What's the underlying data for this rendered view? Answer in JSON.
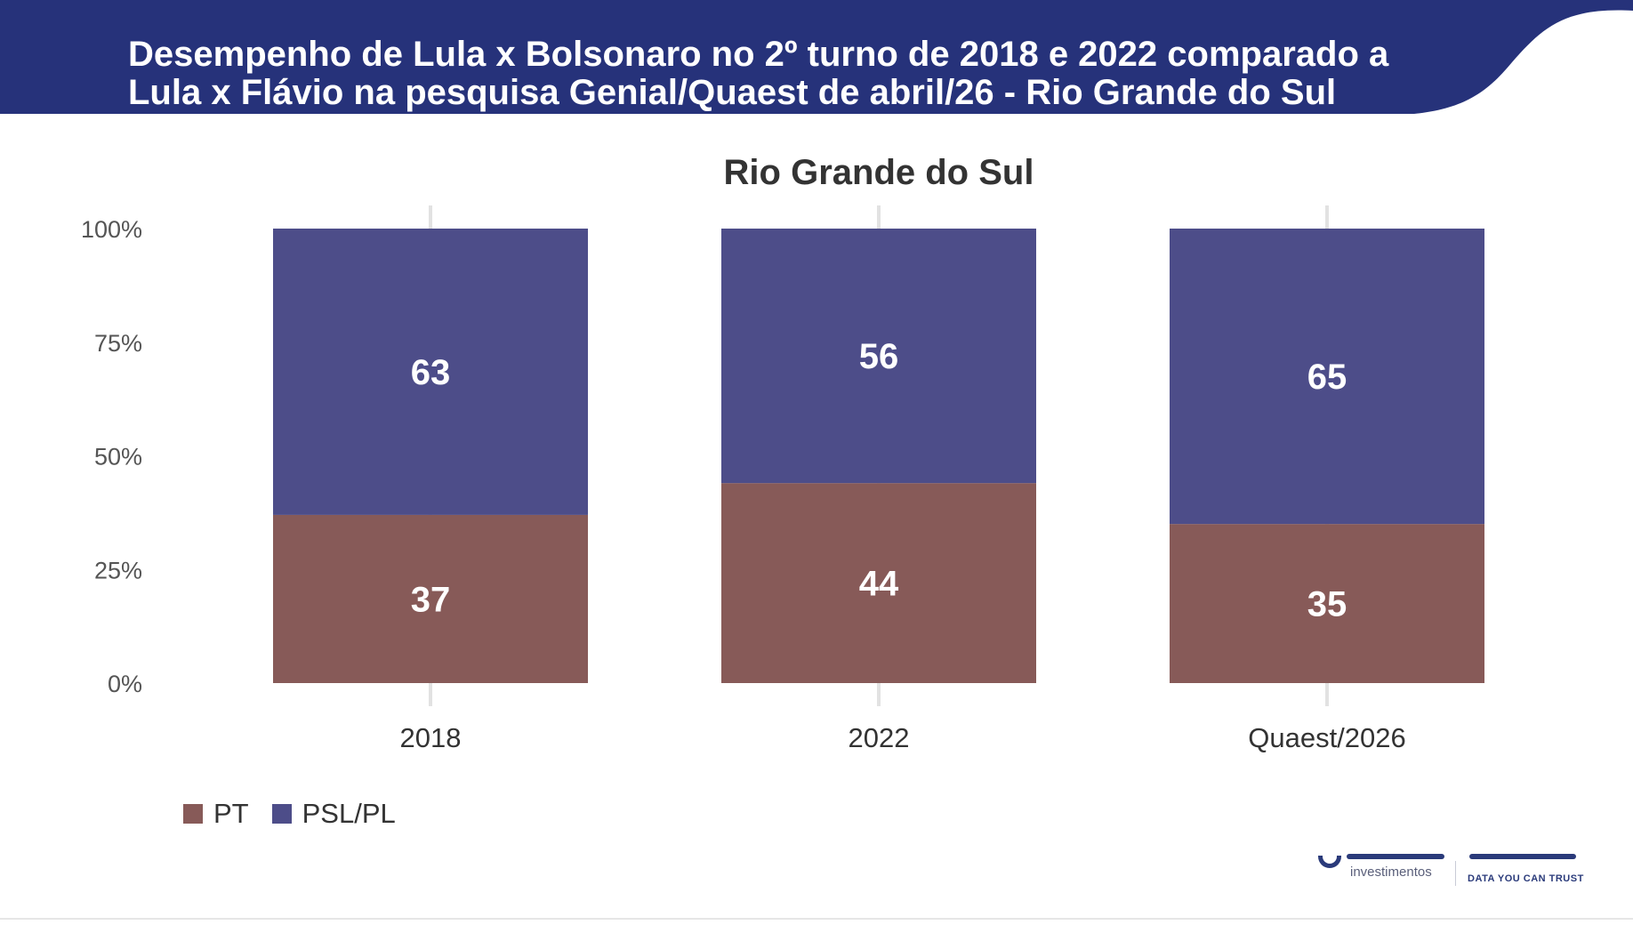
{
  "header": {
    "title_line1": "Desempenho de Lula x Bolsonaro no 2º turno de 2018 e 2022 comparado a",
    "title_line2": "Lula x Flávio na pesquisa Genial/Quaest de abril/26 - Rio Grande do Sul",
    "band_color": "#26327a"
  },
  "chart_data": {
    "type": "bar",
    "stacked": true,
    "percent_axis": true,
    "title": "Rio Grande do Sul",
    "categories": [
      "2018",
      "2022",
      "Quaest/2026"
    ],
    "series": [
      {
        "name": "PT",
        "values": [
          37,
          44,
          35
        ],
        "color": "#875a58"
      },
      {
        "name": "PSL/PL",
        "values": [
          63,
          56,
          65
        ],
        "color": "#4d4d89"
      }
    ],
    "yticks": [
      "0%",
      "25%",
      "50%",
      "75%",
      "100%"
    ],
    "ylim": [
      0,
      100
    ],
    "grid": false,
    "legend_position": "bottom-left"
  },
  "brand": {
    "left_text": "investimentos",
    "right_text": "DATA YOU CAN TRUST"
  }
}
